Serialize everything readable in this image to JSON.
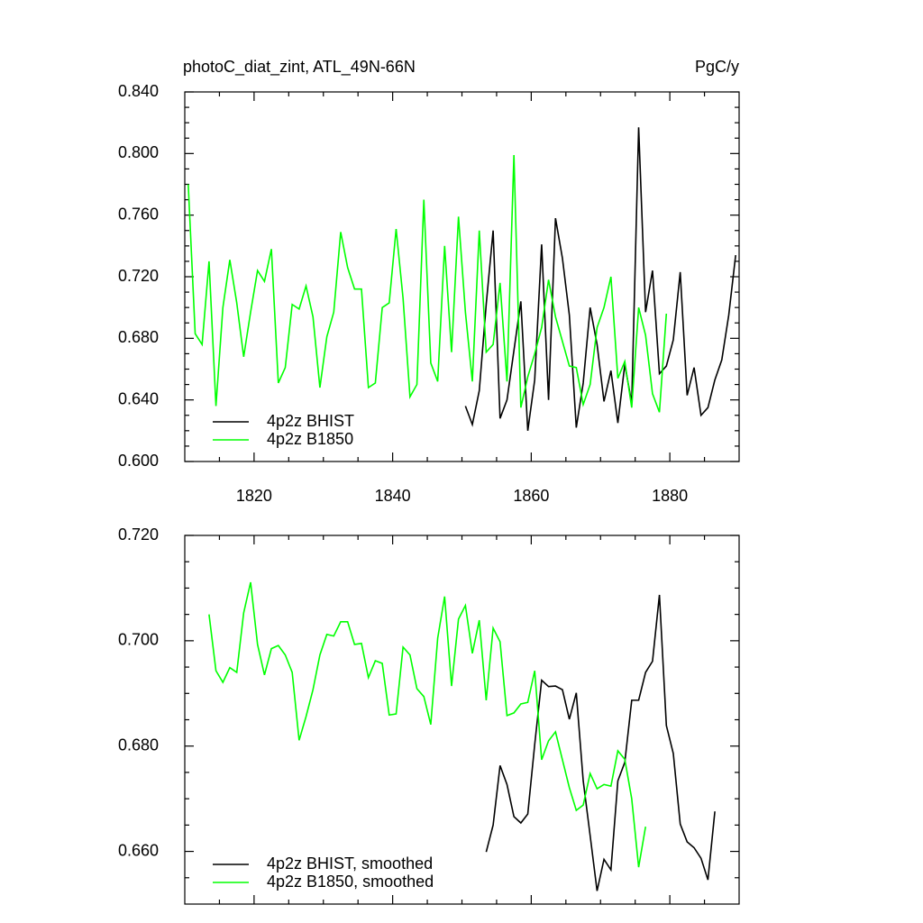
{
  "chart_data": [
    {
      "type": "line",
      "title": "photoC_diat_zint, ATL_49N-66N",
      "units": "PgC/y",
      "xlim": [
        1810,
        1890
      ],
      "xticks": [
        1820,
        1840,
        1860,
        1880
      ],
      "xtick_labels": true,
      "xminorticks": [
        1815,
        1825,
        1830,
        1835,
        1845,
        1850,
        1855,
        1865,
        1870,
        1875,
        1885
      ],
      "ylim": [
        0.6,
        0.84
      ],
      "yticks": [
        {
          "value": 0.6,
          "label": "0.600"
        },
        {
          "value": 0.64,
          "label": "0.640"
        },
        {
          "value": 0.68,
          "label": "0.680"
        },
        {
          "value": 0.72,
          "label": "0.720"
        },
        {
          "value": 0.76,
          "label": "0.760"
        },
        {
          "value": 0.8,
          "label": "0.800"
        },
        {
          "value": 0.84,
          "label": "0.840"
        }
      ],
      "yminorticks": [
        0.61,
        0.62,
        0.63,
        0.65,
        0.66,
        0.67,
        0.69,
        0.7,
        0.71,
        0.73,
        0.74,
        0.75,
        0.77,
        0.78,
        0.79,
        0.81,
        0.82,
        0.83
      ],
      "legend": "lower left",
      "series": [
        {
          "name": "4p2z BHIST",
          "color": "#000000",
          "x": [
            1850.5,
            1851.5,
            1852.5,
            1853.5,
            1854.5,
            1855.5,
            1856.5,
            1857.5,
            1858.5,
            1859.5,
            1860.5,
            1861.5,
            1862.5,
            1863.5,
            1864.5,
            1865.5,
            1866.5,
            1867.5,
            1868.5,
            1869.5,
            1870.5,
            1871.5,
            1872.5,
            1873.5,
            1874.5,
            1875.5,
            1876.5,
            1877.5,
            1878.5,
            1879.5,
            1880.5,
            1881.5,
            1882.5,
            1883.5,
            1884.5,
            1885.5,
            1886.5,
            1887.5,
            1888.5,
            1889.5
          ],
          "values": [
            0.636,
            0.624,
            0.646,
            0.702,
            0.75,
            0.628,
            0.64,
            0.672,
            0.704,
            0.62,
            0.653,
            0.741,
            0.64,
            0.758,
            0.732,
            0.695,
            0.622,
            0.651,
            0.7,
            0.676,
            0.639,
            0.659,
            0.625,
            0.663,
            0.638,
            0.817,
            0.697,
            0.724,
            0.657,
            0.662,
            0.679,
            0.723,
            0.643,
            0.661,
            0.63,
            0.635,
            0.653,
            0.666,
            0.695,
            0.734
          ]
        },
        {
          "name": "4p2z B1850",
          "color": "#00ff00",
          "x": [
            1810.5,
            1811.5,
            1812.5,
            1813.5,
            1814.5,
            1815.5,
            1816.5,
            1817.5,
            1818.5,
            1819.5,
            1820.5,
            1821.5,
            1822.5,
            1823.5,
            1824.5,
            1825.5,
            1826.5,
            1827.5,
            1828.5,
            1829.5,
            1830.5,
            1831.5,
            1832.5,
            1833.5,
            1834.5,
            1835.5,
            1836.5,
            1837.5,
            1838.5,
            1839.5,
            1840.5,
            1841.5,
            1842.5,
            1843.5,
            1844.5,
            1845.5,
            1846.5,
            1847.5,
            1848.5,
            1849.5,
            1850.5,
            1851.5,
            1852.5,
            1853.5,
            1854.5,
            1855.5,
            1856.5,
            1857.5,
            1858.5,
            1859.5,
            1860.5,
            1861.5,
            1862.5,
            1863.5,
            1864.5,
            1865.5,
            1866.5,
            1867.5,
            1868.5,
            1869.5,
            1870.5,
            1871.5,
            1872.5,
            1873.5,
            1874.5,
            1875.5,
            1876.5,
            1877.5,
            1878.5,
            1879.5
          ],
          "values": [
            0.78,
            0.683,
            0.676,
            0.73,
            0.636,
            0.7,
            0.731,
            0.703,
            0.668,
            0.697,
            0.724,
            0.717,
            0.738,
            0.651,
            0.661,
            0.702,
            0.699,
            0.714,
            0.694,
            0.648,
            0.681,
            0.697,
            0.749,
            0.726,
            0.712,
            0.712,
            0.648,
            0.651,
            0.7,
            0.703,
            0.751,
            0.706,
            0.642,
            0.65,
            0.77,
            0.664,
            0.652,
            0.74,
            0.671,
            0.759,
            0.697,
            0.652,
            0.75,
            0.671,
            0.676,
            0.716,
            0.652,
            0.799,
            0.635,
            0.655,
            0.67,
            0.687,
            0.718,
            0.694,
            0.678,
            0.662,
            0.661,
            0.637,
            0.65,
            0.687,
            0.7,
            0.72,
            0.654,
            0.665,
            0.635,
            0.7,
            0.682,
            0.644,
            0.632,
            0.696
          ]
        }
      ]
    },
    {
      "type": "line",
      "xlim": [
        1810,
        1890
      ],
      "xticks": [
        1820,
        1840,
        1860,
        1880
      ],
      "xtick_labels": false,
      "xminorticks": [
        1815,
        1825,
        1830,
        1835,
        1845,
        1850,
        1855,
        1865,
        1870,
        1875,
        1885
      ],
      "ylim": [
        0.65,
        0.72
      ],
      "yticks": [
        {
          "value": 0.66,
          "label": "0.660"
        },
        {
          "value": 0.68,
          "label": "0.680"
        },
        {
          "value": 0.7,
          "label": "0.700"
        },
        {
          "value": 0.72,
          "label": "0.720"
        }
      ],
      "yminorticks": [
        0.655,
        0.665,
        0.67,
        0.675,
        0.685,
        0.69,
        0.695,
        0.705,
        0.71,
        0.715
      ],
      "legend": "lower left",
      "series": [
        {
          "name": "4p2z BHIST, smoothed",
          "color": "#000000",
          "x": [
            1853.5,
            1854.5,
            1855.5,
            1856.5,
            1857.5,
            1858.5,
            1859.5,
            1860.5,
            1861.5,
            1862.5,
            1863.5,
            1864.5,
            1865.5,
            1866.5,
            1867.5,
            1868.5,
            1869.5,
            1870.5,
            1871.5,
            1872.5,
            1873.5,
            1874.5,
            1875.5,
            1876.5,
            1877.5,
            1878.5,
            1879.5,
            1880.5,
            1881.5,
            1882.5,
            1883.5,
            1884.5,
            1885.5,
            1886.5
          ],
          "values": [
            0.6599,
            0.665,
            0.6763,
            0.6727,
            0.6666,
            0.6654,
            0.6671,
            0.6803,
            0.6925,
            0.6913,
            0.6914,
            0.6907,
            0.6851,
            0.6901,
            0.6734,
            0.663,
            0.6525,
            0.6585,
            0.6565,
            0.6734,
            0.6769,
            0.6887,
            0.6887,
            0.694,
            0.6961,
            0.7087,
            0.6839,
            0.6786,
            0.6652,
            0.6618,
            0.6607,
            0.6587,
            0.6546,
            0.6676
          ]
        },
        {
          "name": "4p2z B1850, smoothed",
          "color": "#00ff00",
          "x": [
            1813.5,
            1814.5,
            1815.5,
            1816.5,
            1817.5,
            1818.5,
            1819.5,
            1820.5,
            1821.5,
            1822.5,
            1823.5,
            1824.5,
            1825.5,
            1826.5,
            1827.5,
            1828.5,
            1829.5,
            1830.5,
            1831.5,
            1832.5,
            1833.5,
            1834.5,
            1835.5,
            1836.5,
            1837.5,
            1838.5,
            1839.5,
            1840.5,
            1841.5,
            1842.5,
            1843.5,
            1844.5,
            1845.5,
            1846.5,
            1847.5,
            1848.5,
            1849.5,
            1850.5,
            1851.5,
            1852.5,
            1853.5,
            1854.5,
            1855.5,
            1856.5,
            1857.5,
            1858.5,
            1859.5,
            1860.5,
            1861.5,
            1862.5,
            1863.5,
            1864.5,
            1865.5,
            1866.5,
            1867.5,
            1868.5,
            1869.5,
            1870.5,
            1871.5,
            1872.5,
            1873.5,
            1874.5,
            1875.5,
            1876.5
          ],
          "values": [
            0.705,
            0.6943,
            0.6921,
            0.6949,
            0.694,
            0.7053,
            0.7111,
            0.6993,
            0.6935,
            0.6985,
            0.6991,
            0.6973,
            0.694,
            0.6811,
            0.6856,
            0.6907,
            0.6973,
            0.7012,
            0.7009,
            0.7036,
            0.7036,
            0.6993,
            0.6995,
            0.693,
            0.6962,
            0.6957,
            0.6859,
            0.6861,
            0.6988,
            0.6973,
            0.6909,
            0.6894,
            0.6841,
            0.7005,
            0.7084,
            0.6914,
            0.7041,
            0.7067,
            0.6976,
            0.7039,
            0.6887,
            0.7024,
            0.6998,
            0.6858,
            0.6863,
            0.688,
            0.6883,
            0.6943,
            0.6774,
            0.681,
            0.6827,
            0.6774,
            0.6721,
            0.6678,
            0.6688,
            0.6748,
            0.6719,
            0.6727,
            0.6724,
            0.6791,
            0.6775,
            0.67,
            0.657,
            0.6647
          ]
        }
      ]
    }
  ]
}
